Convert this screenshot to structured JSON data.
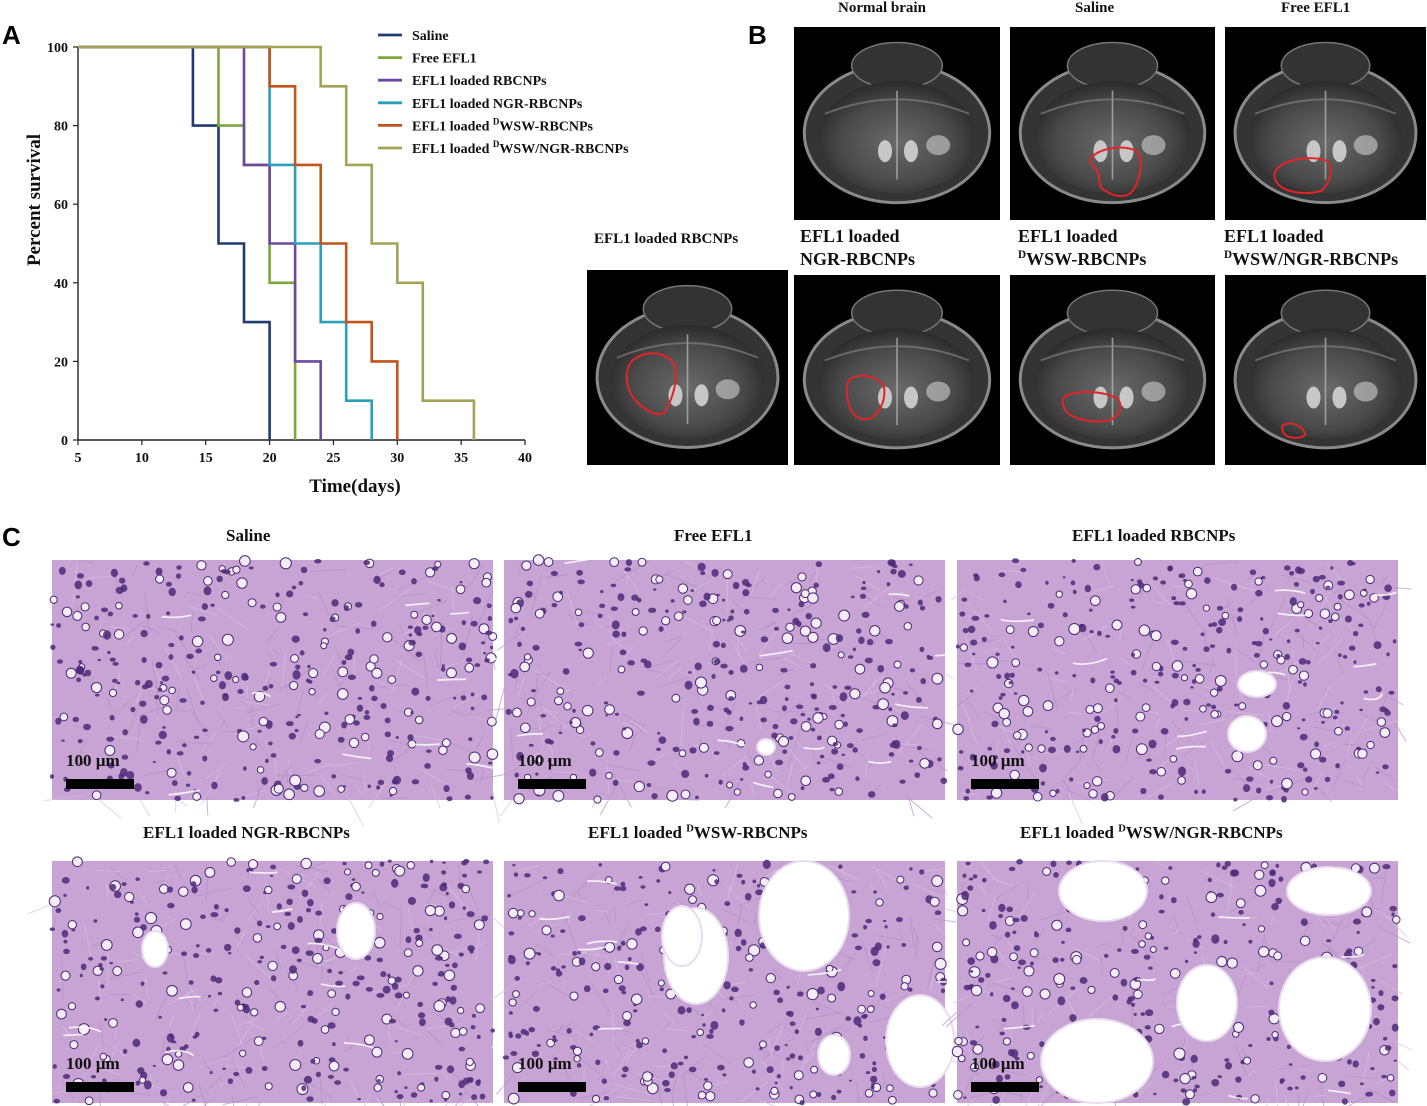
{
  "panels": {
    "a": "A",
    "b": "B",
    "c": "C"
  },
  "chart_data": {
    "type": "line",
    "step": true,
    "xlabel": "Time(days)",
    "ylabel": "Percent survival",
    "xlim": [
      5,
      40
    ],
    "ylim": [
      0,
      100
    ],
    "xticks": [
      5,
      10,
      15,
      20,
      25,
      30,
      35,
      40
    ],
    "yticks": [
      0,
      20,
      40,
      60,
      80,
      100
    ],
    "legend_position": "top-right",
    "series": [
      {
        "name": "Saline",
        "color": "#1f3a6e",
        "points": [
          [
            5,
            100
          ],
          [
            14,
            100
          ],
          [
            14,
            80
          ],
          [
            16,
            80
          ],
          [
            16,
            50
          ],
          [
            18,
            50
          ],
          [
            18,
            30
          ],
          [
            20,
            30
          ],
          [
            20,
            0
          ]
        ]
      },
      {
        "name": "Free EFL1",
        "color": "#7ca83a",
        "points": [
          [
            5,
            100
          ],
          [
            16,
            100
          ],
          [
            16,
            80
          ],
          [
            18,
            80
          ],
          [
            18,
            70
          ],
          [
            20,
            70
          ],
          [
            20,
            40
          ],
          [
            22,
            40
          ],
          [
            22,
            0
          ]
        ]
      },
      {
        "name": "EFL1 loaded RBCNPs",
        "color": "#6b4a9e",
        "points": [
          [
            5,
            100
          ],
          [
            18,
            100
          ],
          [
            18,
            70
          ],
          [
            20,
            70
          ],
          [
            20,
            50
          ],
          [
            22,
            50
          ],
          [
            22,
            20
          ],
          [
            24,
            20
          ],
          [
            24,
            0
          ]
        ]
      },
      {
        "name": "EFL1 loaded NGR-RBCNPs",
        "color": "#2aa0b8",
        "points": [
          [
            5,
            100
          ],
          [
            20,
            100
          ],
          [
            20,
            70
          ],
          [
            22,
            70
          ],
          [
            22,
            50
          ],
          [
            24,
            50
          ],
          [
            24,
            30
          ],
          [
            26,
            30
          ],
          [
            26,
            10
          ],
          [
            28,
            10
          ],
          [
            28,
            0
          ]
        ]
      },
      {
        "name": "EFL1 loaded WSW-RBCNPs",
        "name_sup": "D",
        "name_pre": "EFL1 loaded ",
        "name_post": "WSW-RBCNPs",
        "color": "#c2541c",
        "points": [
          [
            5,
            100
          ],
          [
            20,
            100
          ],
          [
            20,
            90
          ],
          [
            22,
            90
          ],
          [
            22,
            70
          ],
          [
            24,
            70
          ],
          [
            24,
            50
          ],
          [
            26,
            50
          ],
          [
            26,
            30
          ],
          [
            28,
            30
          ],
          [
            28,
            20
          ],
          [
            30,
            20
          ],
          [
            30,
            0
          ]
        ]
      },
      {
        "name": "EFL1 loaded WSW/NGR-RBCNPs",
        "name_sup": "D",
        "name_pre": "EFL1 loaded ",
        "name_post": "WSW/NGR-RBCNPs",
        "color": "#a3a257",
        "points": [
          [
            5,
            100
          ],
          [
            24,
            100
          ],
          [
            24,
            90
          ],
          [
            26,
            90
          ],
          [
            26,
            70
          ],
          [
            28,
            70
          ],
          [
            28,
            50
          ],
          [
            30,
            50
          ],
          [
            30,
            40
          ],
          [
            32,
            40
          ],
          [
            32,
            10
          ],
          [
            36,
            10
          ],
          [
            36,
            0
          ]
        ]
      }
    ]
  },
  "mri": {
    "normal": "Normal brain",
    "saline": "Saline",
    "free": "Free EFL1",
    "rbcnps": "EFL1 loaded RBCNPs",
    "ngr_line1": "EFL1 loaded",
    "ngr_line2": "NGR-RBCNPs",
    "wsw_line1": "EFL1 loaded",
    "wsw_sup": "D",
    "wsw_line2": "WSW-RBCNPs",
    "dual_line1": "EFL1 loaded",
    "dual_sup": "D",
    "dual_line2": "WSW/NGR-RBCNPs"
  },
  "histology": {
    "saline": "Saline",
    "free": "Free EFL1",
    "rbcnps": "EFL1 loaded RBCNPs",
    "ngr": "EFL1 loaded NGR-RBCNPs",
    "wsw_pre": "EFL1 loaded ",
    "wsw_sup": "D",
    "wsw_post": "WSW-RBCNPs",
    "dual_pre": "EFL1 loaded ",
    "dual_sup": "D",
    "dual_post": "WSW/NGR-RBCNPs",
    "scale_label": "100 µm"
  },
  "colors": {
    "tumor_outline": "#e0242a",
    "stain": "#c7a4d3",
    "nuclei": "#4b2a78"
  }
}
